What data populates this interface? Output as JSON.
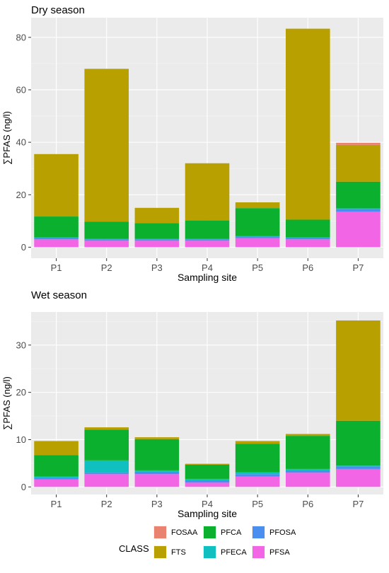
{
  "colors": {
    "FOSAA": "#E9826F",
    "FTS": "#B8A000",
    "PFCA": "#0CB02F",
    "PFECA": "#10BFC0",
    "PFOSA": "#4A8FF0",
    "PFSA": "#F266E6"
  },
  "legend": {
    "title": "CLASS",
    "items": [
      "FOSAA",
      "FTS",
      "PFCA",
      "PFECA",
      "PFOSA",
      "PFSA"
    ]
  },
  "chart_data": [
    {
      "type": "bar",
      "stacked": true,
      "title": "Dry season",
      "xlabel": "Sampling site",
      "ylabel": "∑PFAS (ng/l)",
      "categories": [
        "P1",
        "P2",
        "P3",
        "P4",
        "P5",
        "P6",
        "P7"
      ],
      "ylim": [
        -4.2,
        87.5
      ],
      "yticks": [
        0,
        20,
        40,
        60,
        80
      ],
      "series": [
        {
          "name": "PFSA",
          "values": [
            3.0,
            2.5,
            2.5,
            2.5,
            3.5,
            3.0,
            13.5
          ]
        },
        {
          "name": "PFOSA",
          "values": [
            0.5,
            0.5,
            0.5,
            0.5,
            0.5,
            0.5,
            1.0
          ]
        },
        {
          "name": "PFECA",
          "values": [
            0.2,
            0.2,
            0.2,
            0.2,
            0.2,
            0.2,
            0.3
          ]
        },
        {
          "name": "PFCA",
          "values": [
            8.0,
            6.5,
            6.0,
            7.0,
            10.7,
            6.8,
            10.2
          ]
        },
        {
          "name": "FTS",
          "values": [
            23.8,
            58.3,
            5.8,
            21.8,
            2.2,
            72.8,
            14.0
          ]
        },
        {
          "name": "FOSAA",
          "values": [
            0,
            0,
            0,
            0,
            0,
            0,
            0.8
          ]
        }
      ],
      "grid": true
    },
    {
      "type": "bar",
      "stacked": true,
      "title": "Wet season",
      "xlabel": "Sampling site",
      "ylabel": "∑PFAS (ng/l)",
      "categories": [
        "P1",
        "P2",
        "P3",
        "P4",
        "P5",
        "P6",
        "P7"
      ],
      "ylim": [
        -1.6,
        37.0
      ],
      "yticks": [
        0,
        10,
        20,
        30
      ],
      "series": [
        {
          "name": "PFSA",
          "values": [
            1.6,
            2.7,
            2.7,
            0.9,
            2.2,
            3.0,
            3.8
          ]
        },
        {
          "name": "PFOSA",
          "values": [
            0.3,
            0.3,
            0.5,
            0.5,
            0.5,
            0.5,
            0.5
          ]
        },
        {
          "name": "PFECA",
          "values": [
            0.3,
            2.6,
            0.3,
            0.3,
            0.4,
            0.3,
            0.2
          ]
        },
        {
          "name": "PFCA",
          "values": [
            4.5,
            6.5,
            6.6,
            3.0,
            6.0,
            7.0,
            9.5
          ]
        },
        {
          "name": "FTS",
          "values": [
            3.0,
            0.5,
            0.4,
            0.2,
            0.6,
            0.4,
            21.2
          ]
        },
        {
          "name": "FOSAA",
          "values": [
            0,
            0,
            0,
            0,
            0,
            0,
            0
          ]
        }
      ],
      "grid": true
    }
  ]
}
